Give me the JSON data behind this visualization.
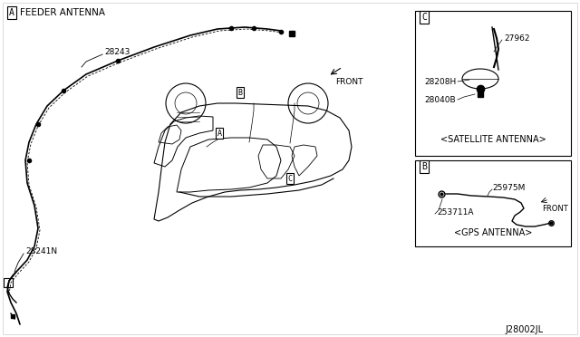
{
  "title": "",
  "bg_color": "#ffffff",
  "border_color": "#000000",
  "diagram_code": "J28002JL",
  "labels": {
    "A_label": "A",
    "B_label": "B",
    "C_label": "C",
    "feeder_antenna": "FEEDER ANTENNA",
    "satellite_antenna": "<SATELLITE ANTENNA>",
    "gps_antenna": "<GPS ANTENNA>",
    "front_text": "FRONT",
    "part_28243": "28243",
    "part_28241N": "28241N",
    "part_27962": "27962",
    "part_28208H": "28208H",
    "part_28040B": "28040B",
    "part_25975M": "25975M",
    "part_253711A": "253711A"
  }
}
